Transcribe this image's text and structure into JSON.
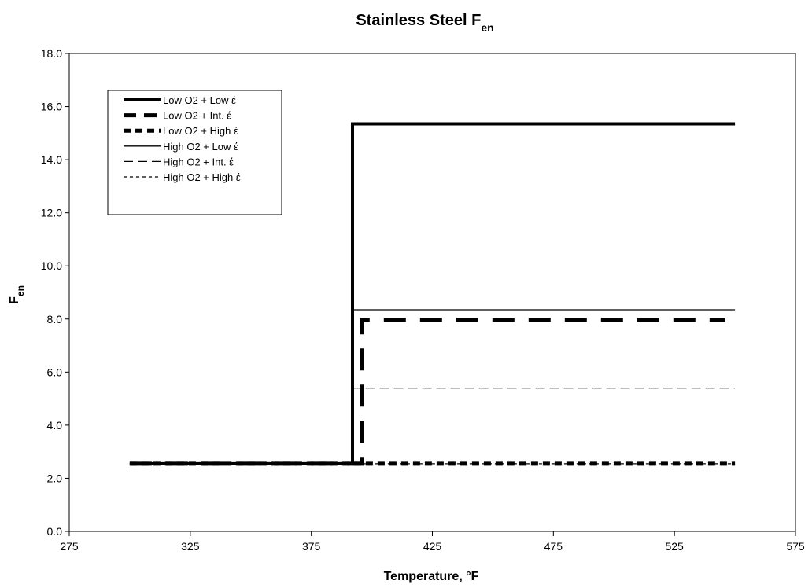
{
  "chart_data": {
    "type": "line",
    "title": "Stainless Steel F",
    "title_sub": "en",
    "xlabel": "Temperature, °F",
    "ylabel": "F",
    "ylabel_sub": "en",
    "xlim": [
      275,
      575
    ],
    "ylim": [
      0,
      18
    ],
    "x_ticks": [
      275,
      325,
      375,
      425,
      475,
      525,
      575
    ],
    "x_tick_labels": [
      "275",
      "325",
      "375",
      "425",
      "475",
      "525",
      "575"
    ],
    "y_ticks": [
      0,
      2,
      4,
      6,
      8,
      10,
      12,
      14,
      16,
      18
    ],
    "y_tick_labels": [
      "0.0",
      "2.0",
      "4.0",
      "6.0",
      "8.0",
      "10.0",
      "12.0",
      "14.0",
      "16.0",
      "18.0"
    ],
    "grid": false,
    "legend_position": "top-left",
    "series": [
      {
        "name": "Low O2 + Low έ",
        "style": "thick-solid",
        "x": [
          300,
          392,
          392,
          550
        ],
        "y": [
          2.55,
          2.55,
          15.35,
          15.35
        ]
      },
      {
        "name": "Low O2 + Int. έ",
        "style": "thick-dash",
        "x": [
          300,
          392,
          396,
          396,
          546
        ],
        "y": [
          2.55,
          2.55,
          2.55,
          7.97,
          7.97
        ]
      },
      {
        "name": "Low O2 + High έ",
        "style": "thick-short-dash",
        "x": [
          300,
          550
        ],
        "y": [
          2.55,
          2.55
        ]
      },
      {
        "name": "High O2 + Low έ",
        "style": "thin-solid",
        "x": [
          300,
          392,
          392,
          550
        ],
        "y": [
          2.55,
          2.55,
          8.35,
          8.35
        ]
      },
      {
        "name": "High O2 + Int. έ",
        "style": "thin-dash",
        "x": [
          300,
          392,
          392,
          550
        ],
        "y": [
          2.55,
          2.55,
          5.4,
          5.4
        ]
      },
      {
        "name": "High O2 + High έ",
        "style": "thin-dot",
        "x": [
          300,
          550
        ],
        "y": [
          2.55,
          2.55
        ]
      }
    ]
  }
}
